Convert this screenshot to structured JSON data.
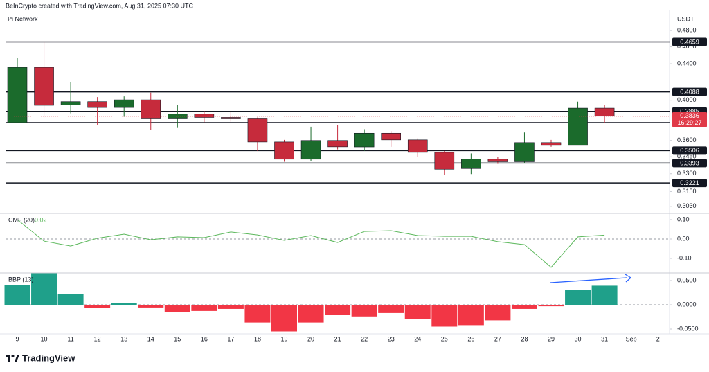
{
  "source": "BeInCrypto created with TradingView.com, Aug 31, 2025 07:30 UTC",
  "branding": "TradingView",
  "chart_data": [
    {
      "type": "candlestick",
      "title": "Pi Network",
      "currency": "USDT",
      "log_scale": true,
      "grid": false,
      "categories": [
        "9",
        "10",
        "11",
        "12",
        "13",
        "14",
        "15",
        "16",
        "17",
        "18",
        "19",
        "20",
        "21",
        "22",
        "23",
        "24",
        "25",
        "26",
        "27",
        "28",
        "29",
        "30",
        "31",
        "Sep",
        "2"
      ],
      "open": [
        0.3772,
        0.436,
        0.395,
        0.3985,
        0.3925,
        0.4004,
        0.381,
        0.3857,
        0.3824,
        0.381,
        0.3586,
        0.3428,
        0.36,
        0.354,
        0.3669,
        0.3606,
        0.349,
        0.3345,
        0.3428,
        0.3405,
        0.358,
        0.3554,
        0.3918,
        null,
        null
      ],
      "high": [
        0.4465,
        0.4659,
        0.4198,
        0.4033,
        0.404,
        0.408,
        0.395,
        0.389,
        0.388,
        0.3824,
        0.3606,
        0.3732,
        0.3745,
        0.3708,
        0.3689,
        0.362,
        0.3502,
        0.348,
        0.3446,
        0.3676,
        0.3606,
        0.3985,
        0.395,
        null,
        null
      ],
      "low": [
        0.3772,
        0.3824,
        0.3865,
        0.3752,
        0.383,
        0.3698,
        0.372,
        0.3776,
        0.3782,
        0.3502,
        0.3405,
        0.341,
        0.3517,
        0.3502,
        0.3541,
        0.3446,
        0.3291,
        0.3297,
        0.3386,
        0.3393,
        0.3541,
        0.3554,
        0.3772,
        null,
        null
      ],
      "close": [
        0.436,
        0.3947,
        0.3985,
        0.3925,
        0.4004,
        0.381,
        0.3857,
        0.3824,
        0.381,
        0.3586,
        0.3428,
        0.36,
        0.3541,
        0.3669,
        0.3606,
        0.349,
        0.3339,
        0.3428,
        0.3405,
        0.358,
        0.3554,
        0.3918,
        0.3836,
        null,
        null
      ],
      "up_color": "#1b6b2c",
      "down_color": "#c62b3c",
      "ylim": [
        0.298,
        0.506
      ],
      "yticks": [
        {
          "value": 0.48,
          "label": "0.4800"
        },
        {
          "value": 0.46,
          "label": "0.4600"
        },
        {
          "value": 0.44,
          "label": "0.4400"
        },
        {
          "value": 0.4,
          "label": "0.4000"
        },
        {
          "value": 0.36,
          "label": "0.3600"
        },
        {
          "value": 0.345,
          "label": "0.3450"
        },
        {
          "value": 0.33,
          "label": "0.3300"
        },
        {
          "value": 0.315,
          "label": "0.3150"
        },
        {
          "value": 0.303,
          "label": "0.3030"
        }
      ],
      "levels": [
        0.4659,
        0.4088,
        0.3885,
        0.3772,
        0.3506,
        0.3393,
        0.3221
      ],
      "countdown": "16:29:27",
      "last_color": "#e03a48"
    },
    {
      "type": "line",
      "title": "CMF (20)",
      "color": "#5cb85c",
      "values": [
        0.1,
        -0.011,
        -0.036,
        0.004,
        0.025,
        -0.004,
        0.011,
        0.007,
        0.036,
        0.021,
        -0.007,
        0.018,
        -0.018,
        0.039,
        0.043,
        0.018,
        0.014,
        0.014,
        -0.014,
        -0.029,
        -0.146,
        0.011,
        0.02,
        null,
        null
      ],
      "ylim": [
        -0.17,
        0.125
      ],
      "yticks": [
        {
          "value": 0.1,
          "label": "0.10"
        },
        {
          "value": 0,
          "label": "0.00"
        },
        {
          "value": -0.1,
          "label": "-0.10"
        }
      ]
    },
    {
      "type": "bar",
      "title": "BBP (13)",
      "up_color": "#1fa08a",
      "down_color": "#f23645",
      "values": [
        0.041,
        0.065,
        0.0225,
        -0.007,
        0.003,
        -0.0056,
        -0.0155,
        -0.0127,
        -0.0085,
        -0.0366,
        -0.055,
        -0.0366,
        -0.021,
        -0.024,
        -0.017,
        -0.0296,
        -0.045,
        -0.042,
        -0.032,
        -0.0085,
        -0.003,
        0.031,
        0.0394,
        null,
        null
      ],
      "ylim": [
        -0.061,
        0.065
      ],
      "yticks": [
        {
          "value": 0.05,
          "label": "0.0500"
        },
        {
          "value": 0,
          "label": "0.0000"
        },
        {
          "value": -0.05,
          "label": "-0.0500"
        }
      ]
    }
  ]
}
